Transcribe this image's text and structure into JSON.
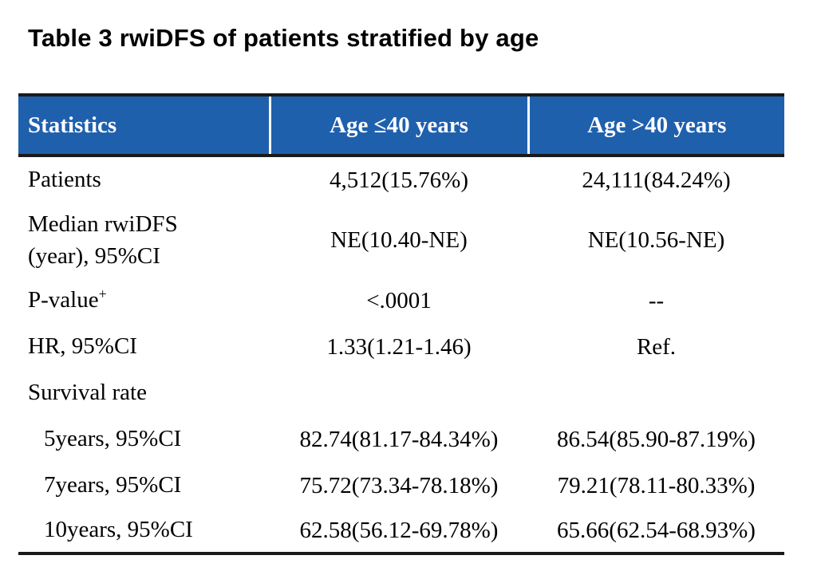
{
  "title": "Table 3 rwiDFS of patients stratified by age",
  "colors": {
    "header_bg": "#1f60ad",
    "header_text": "#ffffff",
    "rule": "#1a1a1a",
    "body_text": "#000000",
    "page_bg": "#ffffff"
  },
  "table": {
    "columns": [
      "Statistics",
      "Age ≤40 years",
      "Age >40 years"
    ],
    "rows": [
      {
        "label": "Patients",
        "age_le_40": "4,512(15.76%)",
        "age_gt_40": "24,111(84.24%)"
      },
      {
        "label": "Median rwiDFS\n(year), 95%CI",
        "age_le_40": "NE(10.40-NE)",
        "age_gt_40": "NE(10.56-NE)"
      },
      {
        "label": "P-value",
        "sup": "+",
        "age_le_40": "<.0001",
        "age_gt_40": "--"
      },
      {
        "label": "HR, 95%CI",
        "age_le_40": "1.33(1.21-1.46)",
        "age_gt_40": "Ref."
      },
      {
        "label": "Survival rate",
        "age_le_40": "",
        "age_gt_40": ""
      },
      {
        "label": "5years, 95%CI",
        "age_le_40": "82.74(81.17-84.34%)",
        "age_gt_40": "86.54(85.90-87.19%)"
      },
      {
        "label": "7years, 95%CI",
        "age_le_40": "75.72(73.34-78.18%)",
        "age_gt_40": "79.21(78.11-80.33%)"
      },
      {
        "label": "10years, 95%CI",
        "age_le_40": "62.58(56.12-69.78%)",
        "age_gt_40": "65.66(62.54-68.93%)"
      }
    ]
  }
}
